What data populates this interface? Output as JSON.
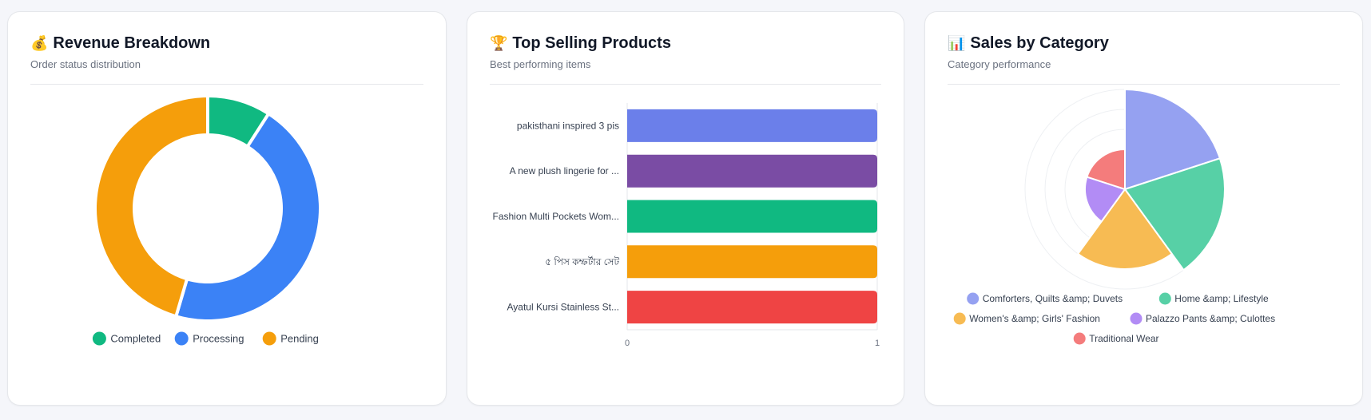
{
  "cards": {
    "revenue": {
      "emoji": "💰",
      "title": "Revenue Breakdown",
      "subtitle": "Order status distribution"
    },
    "top_products": {
      "emoji": "🏆",
      "title": "Top Selling Products",
      "subtitle": "Best performing items"
    },
    "category": {
      "emoji": "📊",
      "title": "Sales by Category",
      "subtitle": "Category performance"
    }
  },
  "chart_data": [
    {
      "type": "pie",
      "variant": "doughnut",
      "categories": [
        "Completed",
        "Processing",
        "Pending"
      ],
      "values": [
        1,
        5,
        5
      ],
      "colors": [
        "#10b981",
        "#3b82f6",
        "#f59e0b"
      ],
      "legend": "bottom"
    },
    {
      "type": "bar",
      "orientation": "horizontal",
      "categories": [
        "pakisthani inspired 3 pis",
        "A new plush lingerie for ...",
        "Fashion Multi Pockets Wom...",
        "৫ পিস কম্ফর্টার সেট",
        "Ayatul Kursi Stainless St..."
      ],
      "values": [
        1,
        1,
        1,
        1,
        1
      ],
      "colors": [
        "#6b7fea",
        "#7a4ca4",
        "#10b981",
        "#f59e0b",
        "#ef4444"
      ],
      "xlim": [
        0,
        1
      ],
      "xticks": [
        "0",
        "1"
      ],
      "grid": true
    },
    {
      "type": "pie",
      "variant": "polar-area",
      "categories": [
        "Comforters, Quilts &amp; Duvets",
        "Home &amp; Lifestyle",
        "Women's &amp; Girls' Fashion",
        "Palazzo Pants &amp; Culottes",
        "Traditional Wear"
      ],
      "values": [
        5,
        5,
        4,
        2,
        2
      ],
      "max": 5,
      "colors": [
        "#95a1f1",
        "#57d0a6",
        "#f7bb53",
        "#b28cf5",
        "#f47c7c"
      ],
      "legend": "bottom"
    }
  ]
}
